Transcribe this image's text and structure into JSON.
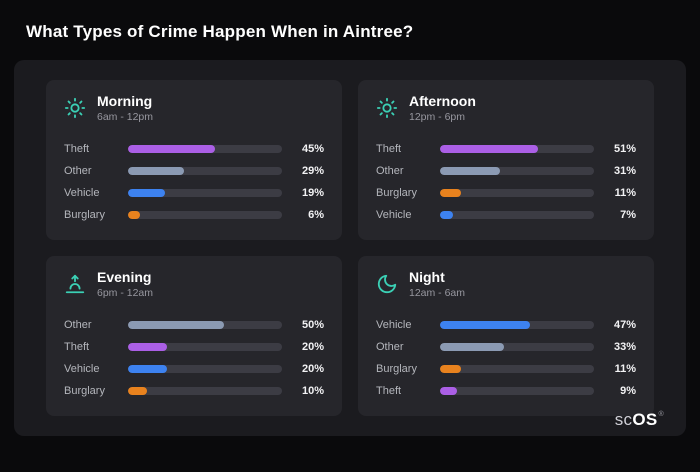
{
  "page": {
    "title": "What Types of Crime Happen When in Aintree?"
  },
  "brand": {
    "prefix": "sc",
    "suffix": "OS",
    "reg": "®"
  },
  "colors": {
    "theft": "#ab5fe6",
    "other": "#8b9ab3",
    "vehicle": "#3d82f0",
    "burglary": "#e8821e",
    "accent": "#3bd0b5",
    "track": "#3c3c44",
    "panel": "#1b1b1f",
    "card": "#26262b",
    "background": "#0a0a0c"
  },
  "cards": [
    {
      "id": "morning",
      "icon": "sun-icon",
      "title": "Morning",
      "subtitle": "6am - 12pm",
      "rows": [
        {
          "label": "Theft",
          "pct": "45%",
          "value": 45,
          "color": "theft"
        },
        {
          "label": "Other",
          "pct": "29%",
          "value": 29,
          "color": "other"
        },
        {
          "label": "Vehicle",
          "pct": "19%",
          "value": 19,
          "color": "vehicle"
        },
        {
          "label": "Burglary",
          "pct": "6%",
          "value": 6,
          "color": "burglary"
        }
      ]
    },
    {
      "id": "afternoon",
      "icon": "sun-icon",
      "title": "Afternoon",
      "subtitle": "12pm - 6pm",
      "rows": [
        {
          "label": "Theft",
          "pct": "51%",
          "value": 51,
          "color": "theft"
        },
        {
          "label": "Other",
          "pct": "31%",
          "value": 31,
          "color": "other"
        },
        {
          "label": "Burglary",
          "pct": "11%",
          "value": 11,
          "color": "burglary"
        },
        {
          "label": "Vehicle",
          "pct": "7%",
          "value": 7,
          "color": "vehicle"
        }
      ]
    },
    {
      "id": "evening",
      "icon": "sunset-icon",
      "title": "Evening",
      "subtitle": "6pm - 12am",
      "rows": [
        {
          "label": "Other",
          "pct": "50%",
          "value": 50,
          "color": "other"
        },
        {
          "label": "Theft",
          "pct": "20%",
          "value": 20,
          "color": "theft"
        },
        {
          "label": "Vehicle",
          "pct": "20%",
          "value": 20,
          "color": "vehicle"
        },
        {
          "label": "Burglary",
          "pct": "10%",
          "value": 10,
          "color": "burglary"
        }
      ]
    },
    {
      "id": "night",
      "icon": "moon-icon",
      "title": "Night",
      "subtitle": "12am - 6am",
      "rows": [
        {
          "label": "Vehicle",
          "pct": "47%",
          "value": 47,
          "color": "vehicle"
        },
        {
          "label": "Other",
          "pct": "33%",
          "value": 33,
          "color": "other"
        },
        {
          "label": "Burglary",
          "pct": "11%",
          "value": 11,
          "color": "burglary"
        },
        {
          "label": "Theft",
          "pct": "9%",
          "value": 9,
          "color": "theft"
        }
      ]
    }
  ],
  "chart_data": [
    {
      "type": "bar",
      "orientation": "horizontal",
      "title": "Morning",
      "subtitle": "6am - 12pm",
      "categories": [
        "Theft",
        "Other",
        "Vehicle",
        "Burglary"
      ],
      "values": [
        45,
        29,
        19,
        6
      ],
      "unit": "%",
      "xlim": [
        0,
        100
      ],
      "bar_colors": [
        "#ab5fe6",
        "#8b9ab3",
        "#3d82f0",
        "#e8821e"
      ],
      "grid": false,
      "legend": false
    },
    {
      "type": "bar",
      "orientation": "horizontal",
      "title": "Afternoon",
      "subtitle": "12pm - 6pm",
      "categories": [
        "Theft",
        "Other",
        "Burglary",
        "Vehicle"
      ],
      "values": [
        51,
        31,
        11,
        7
      ],
      "unit": "%",
      "xlim": [
        0,
        100
      ],
      "bar_colors": [
        "#ab5fe6",
        "#8b9ab3",
        "#e8821e",
        "#3d82f0"
      ],
      "grid": false,
      "legend": false
    },
    {
      "type": "bar",
      "orientation": "horizontal",
      "title": "Evening",
      "subtitle": "6pm - 12am",
      "categories": [
        "Other",
        "Theft",
        "Vehicle",
        "Burglary"
      ],
      "values": [
        50,
        20,
        20,
        10
      ],
      "unit": "%",
      "xlim": [
        0,
        100
      ],
      "bar_colors": [
        "#8b9ab3",
        "#ab5fe6",
        "#3d82f0",
        "#e8821e"
      ],
      "grid": false,
      "legend": false
    },
    {
      "type": "bar",
      "orientation": "horizontal",
      "title": "Night",
      "subtitle": "12am - 6am",
      "categories": [
        "Vehicle",
        "Other",
        "Burglary",
        "Theft"
      ],
      "values": [
        47,
        33,
        11,
        9
      ],
      "unit": "%",
      "xlim": [
        0,
        100
      ],
      "bar_colors": [
        "#3d82f0",
        "#8b9ab3",
        "#e8821e",
        "#ab5fe6"
      ],
      "grid": false,
      "legend": false
    }
  ]
}
